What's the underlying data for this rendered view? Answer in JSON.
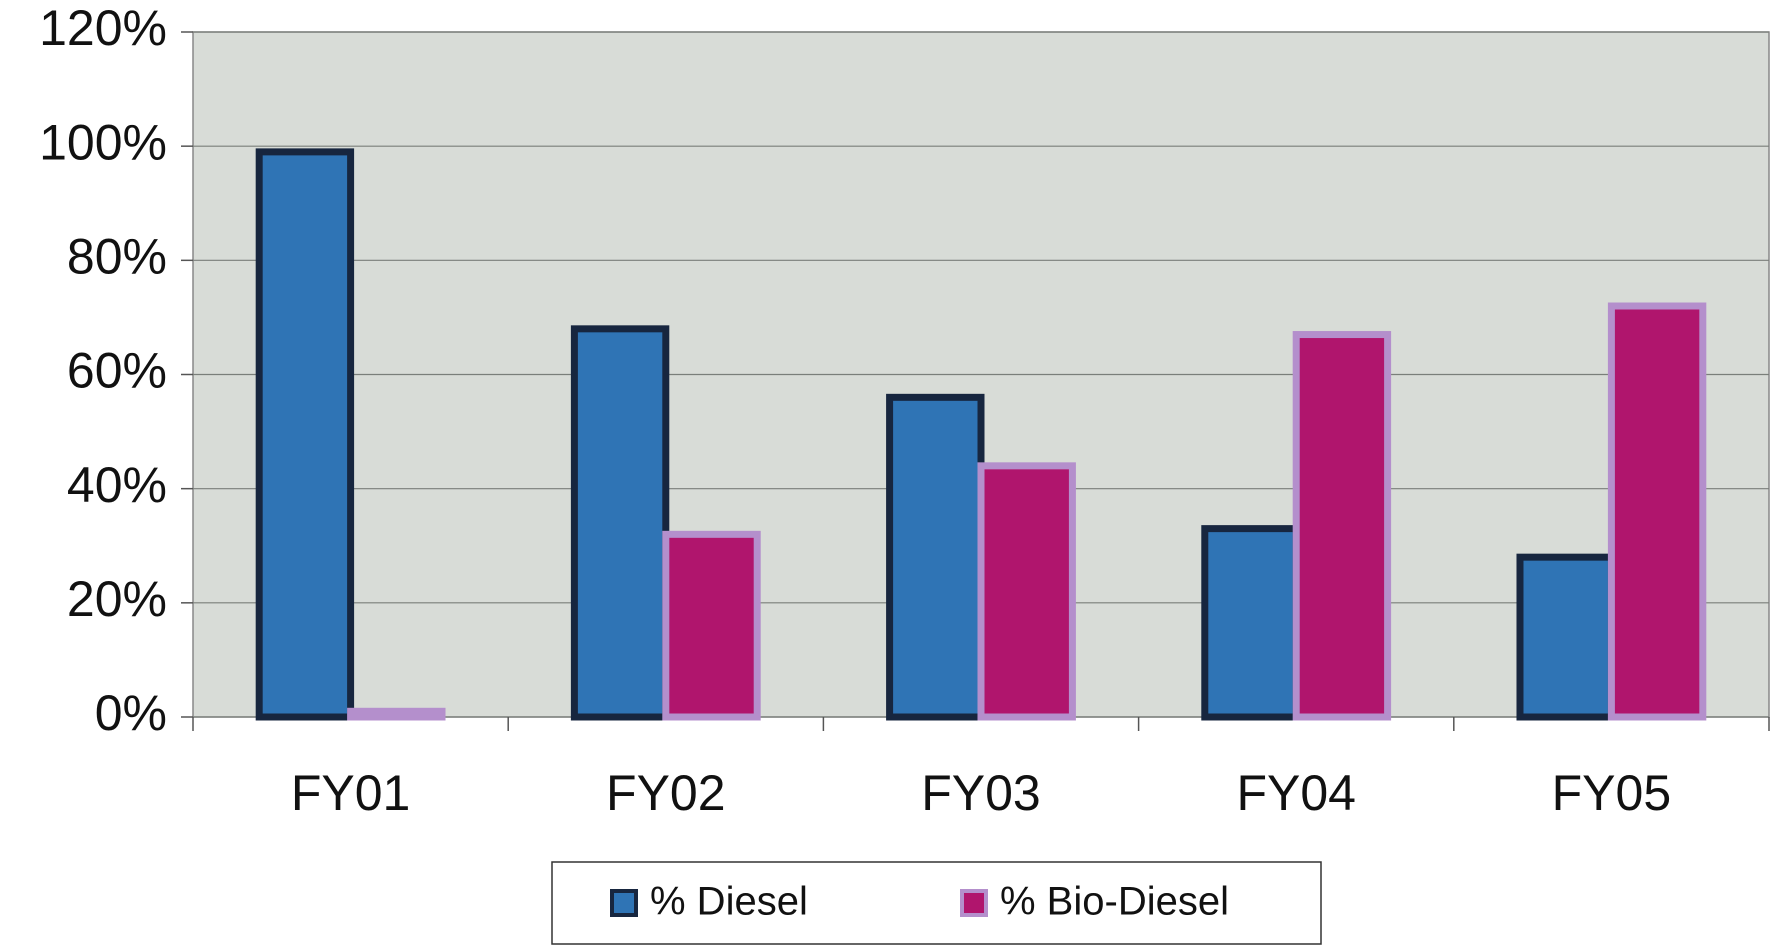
{
  "chart_data": {
    "type": "bar",
    "categories": [
      "FY01",
      "FY02",
      "FY03",
      "FY04",
      "FY05"
    ],
    "series": [
      {
        "name": "% Diesel",
        "color": "#2f74b5",
        "values": [
          99,
          68,
          56,
          33,
          28
        ]
      },
      {
        "name": "% Bio-Diesel",
        "color": "#b0156d",
        "values": [
          1,
          32,
          44,
          67,
          72
        ]
      }
    ],
    "ylim": [
      0,
      120
    ],
    "yticks": [
      {
        "value": 0,
        "label": "0%"
      },
      {
        "value": 20,
        "label": "20%"
      },
      {
        "value": 40,
        "label": "40%"
      },
      {
        "value": 60,
        "label": "60%"
      },
      {
        "value": 80,
        "label": "80%"
      },
      {
        "value": 100,
        "label": "100%"
      },
      {
        "value": 120,
        "label": "120%"
      }
    ],
    "grid": true,
    "legend": "bottom"
  }
}
